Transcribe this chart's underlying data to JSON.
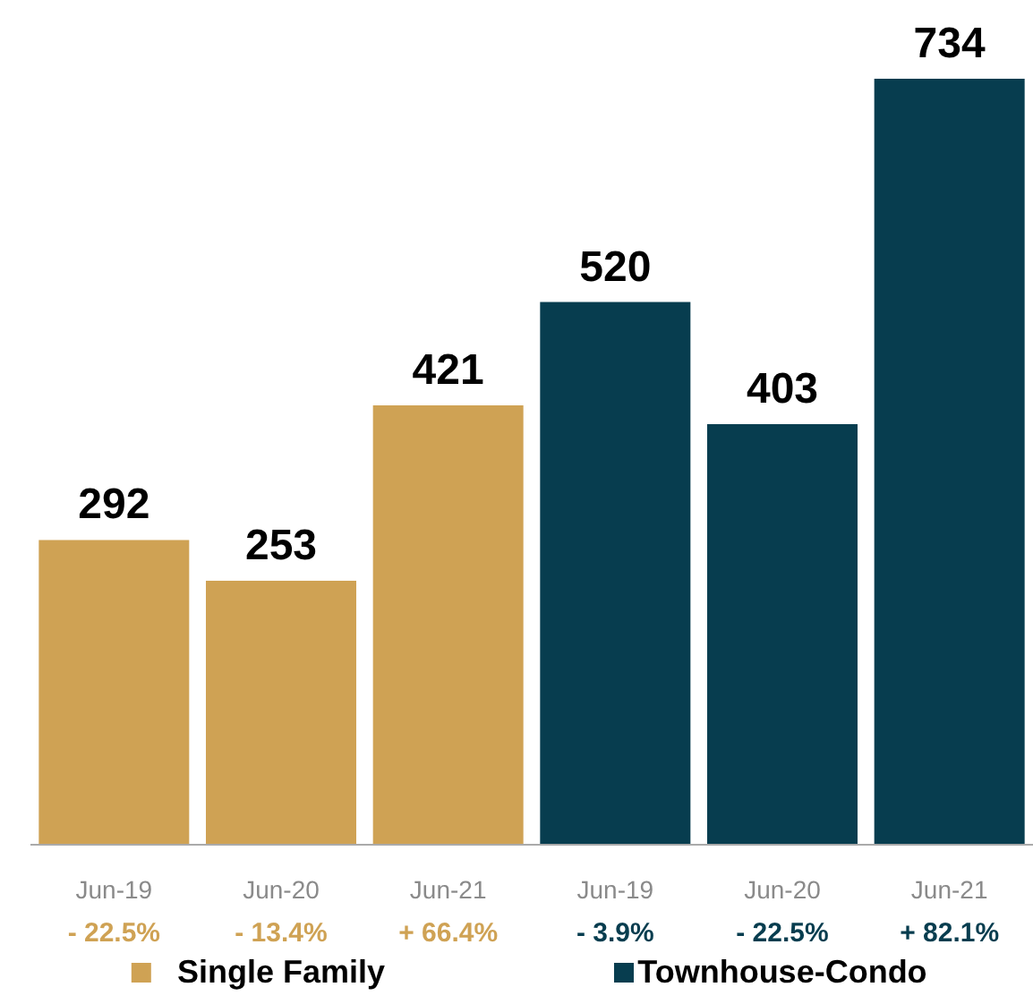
{
  "chart_data": {
    "type": "bar",
    "categories": [
      "Jun-19",
      "Jun-20",
      "Jun-21",
      "Jun-19",
      "Jun-20",
      "Jun-21"
    ],
    "series": [
      {
        "name": "Single Family",
        "color": "#cfa254",
        "values": [
          292,
          253,
          421,
          null,
          null,
          null
        ]
      },
      {
        "name": "Townhouse-Condo",
        "color": "#073d4f",
        "values": [
          null,
          null,
          null,
          520,
          403,
          734
        ]
      }
    ],
    "stacked": true,
    "data_labels": true,
    "legend": "bottom",
    "annotations": [
      "- 22.5%",
      "- 13.4%",
      "+ 66.4%",
      "- 3.9%",
      "- 22.5%",
      "+ 82.1%"
    ]
  }
}
